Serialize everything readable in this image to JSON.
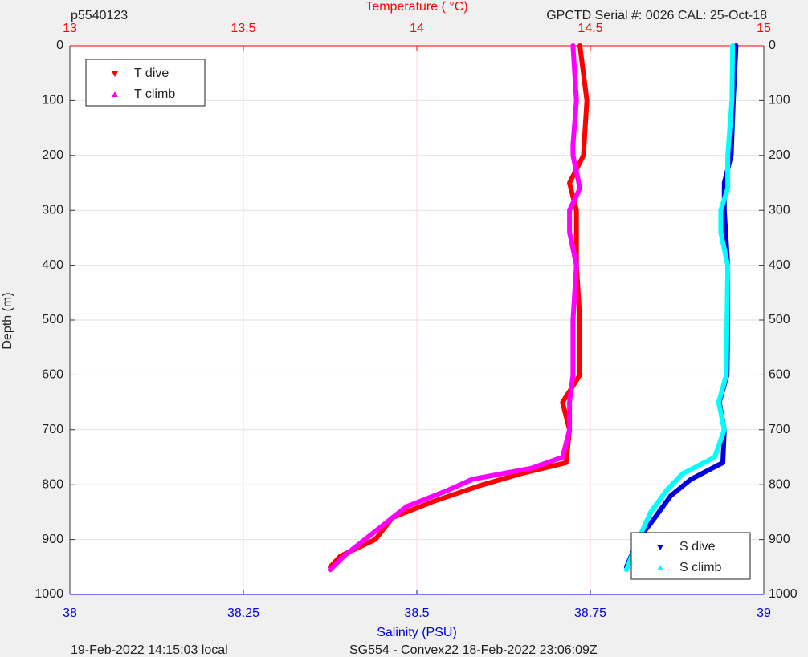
{
  "chart_data": {
    "type": "profile",
    "title": "p5540123",
    "subtitle": "GPCTD Serial #: 0026 CAL: 25-Oct-18",
    "x2_label": "Temperature (    °C)",
    "x_label": "Salinity (PSU)",
    "y_label": "Depth (m)",
    "footer_left": "19-Feb-2022 14:15:03 local",
    "footer_right": "SG554 - Convex22 18-Feb-2022 23:06:09Z",
    "xlim": [
      38,
      39
    ],
    "xticks": [
      38,
      38.25,
      38.5,
      38.75,
      39
    ],
    "x2lim": [
      13,
      15
    ],
    "x2ticks": [
      13,
      13.5,
      14,
      14.5,
      15
    ],
    "ylim": [
      0,
      1000
    ],
    "y_inverted": true,
    "yticks": [
      0,
      100,
      200,
      300,
      400,
      500,
      600,
      700,
      800,
      900,
      1000
    ],
    "grid": true,
    "x2_legend": "upper left",
    "legend": "lower right",
    "series": [
      {
        "name": "T dive",
        "color": "#ff0000",
        "axis": "x2",
        "marker": "triangle-down",
        "depth": [
          0,
          100,
          200,
          250,
          300,
          400,
          500,
          600,
          650,
          700,
          760,
          780,
          800,
          830,
          860,
          900,
          930,
          950
        ],
        "values": [
          14.47,
          14.49,
          14.48,
          14.44,
          14.46,
          14.46,
          14.47,
          14.47,
          14.42,
          14.44,
          14.43,
          14.3,
          14.19,
          14.05,
          13.93,
          13.88,
          13.78,
          13.75
        ]
      },
      {
        "name": "T climb",
        "color": "#ff00ff",
        "axis": "x2",
        "marker": "triangle-up",
        "depth": [
          0,
          100,
          180,
          200,
          260,
          300,
          340,
          400,
          500,
          600,
          650,
          700,
          750,
          770,
          790,
          810,
          840,
          870,
          900,
          930,
          955
        ],
        "values": [
          14.45,
          14.46,
          14.45,
          14.45,
          14.47,
          14.44,
          14.44,
          14.46,
          14.45,
          14.45,
          14.44,
          14.44,
          14.42,
          14.33,
          14.16,
          14.09,
          13.97,
          13.91,
          13.85,
          13.79,
          13.75
        ]
      },
      {
        "name": "S dive",
        "color": "#0000e0",
        "axis": "x",
        "marker": "triangle-down",
        "depth": [
          0,
          100,
          200,
          250,
          300,
          400,
          500,
          600,
          650,
          700,
          760,
          790,
          820,
          860,
          900,
          950
        ],
        "values": [
          38.96,
          38.956,
          38.953,
          38.943,
          38.943,
          38.948,
          38.948,
          38.947,
          38.936,
          38.943,
          38.941,
          38.895,
          38.866,
          38.843,
          38.819,
          38.802
        ]
      },
      {
        "name": "S climb",
        "color": "#00ffff",
        "axis": "x",
        "marker": "triangle-up",
        "depth": [
          0,
          100,
          200,
          260,
          300,
          340,
          400,
          500,
          600,
          650,
          700,
          750,
          780,
          810,
          850,
          900,
          955
        ],
        "values": [
          38.955,
          38.954,
          38.948,
          38.948,
          38.938,
          38.938,
          38.948,
          38.947,
          38.946,
          38.935,
          38.943,
          38.929,
          38.883,
          38.86,
          38.837,
          38.819,
          38.802
        ]
      }
    ]
  }
}
